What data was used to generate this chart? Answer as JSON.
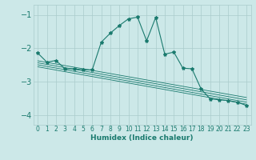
{
  "xlabel": "Humidex (Indice chaleur)",
  "bg_color": "#cce8e8",
  "grid_color": "#aacccc",
  "line_color": "#1a7a6e",
  "xlim": [
    -0.5,
    23.5
  ],
  "ylim": [
    -4.3,
    -0.7
  ],
  "yticks": [
    -4,
    -3,
    -2,
    -1
  ],
  "xticks": [
    0,
    1,
    2,
    3,
    4,
    5,
    6,
    7,
    8,
    9,
    10,
    11,
    12,
    13,
    14,
    15,
    16,
    17,
    18,
    19,
    20,
    21,
    22,
    23
  ],
  "main_x": [
    0,
    1,
    2,
    3,
    4,
    5,
    6,
    7,
    8,
    9,
    10,
    11,
    12,
    13,
    14,
    15,
    16,
    17,
    18,
    19,
    20,
    21,
    22,
    23
  ],
  "main_y": [
    -2.15,
    -2.42,
    -2.37,
    -2.62,
    -2.62,
    -2.65,
    -2.65,
    -1.82,
    -1.55,
    -1.32,
    -1.12,
    -1.07,
    -1.78,
    -1.08,
    -2.18,
    -2.12,
    -2.6,
    -2.62,
    -3.22,
    -3.52,
    -3.55,
    -3.57,
    -3.62,
    -3.72
  ],
  "line1_x": [
    0,
    23
  ],
  "line1_y": [
    -2.38,
    -3.48
  ],
  "line2_x": [
    0,
    23
  ],
  "line2_y": [
    -2.44,
    -3.55
  ],
  "line3_x": [
    0,
    23
  ],
  "line3_y": [
    -2.5,
    -3.62
  ],
  "line4_x": [
    0,
    23
  ],
  "line4_y": [
    -2.56,
    -3.68
  ]
}
